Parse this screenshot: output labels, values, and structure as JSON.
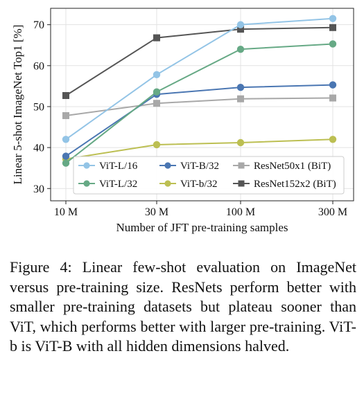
{
  "chart_data": {
    "type": "line",
    "x": [
      "10 M",
      "30 M",
      "100 M",
      "300 M"
    ],
    "xlabel": "Number of JFT pre-training samples",
    "ylabel": "Linear 5-shot ImageNet Top1 [%]",
    "ylim": [
      27,
      74
    ],
    "yticks": [
      30,
      40,
      50,
      60,
      70
    ],
    "grid": true,
    "legend_placement": "bottom-right",
    "series": [
      {
        "name": "ViT-L/16",
        "color": "#93c4e6",
        "marker": "circle",
        "values": [
          42.0,
          57.8,
          70.0,
          71.5
        ]
      },
      {
        "name": "ViT-L/32",
        "color": "#66a985",
        "marker": "circle",
        "values": [
          36.2,
          53.6,
          64.0,
          65.3
        ]
      },
      {
        "name": "ViT-B/32",
        "color": "#4a76b2",
        "marker": "circle",
        "values": [
          37.9,
          53.0,
          54.7,
          55.3
        ]
      },
      {
        "name": "ViT-b/32",
        "color": "#bcbf52",
        "marker": "circle",
        "values": [
          37.2,
          40.7,
          41.2,
          42.0
        ]
      },
      {
        "name": "ResNet50x1 (BiT)",
        "color": "#a8a8a8",
        "marker": "square",
        "values": [
          47.8,
          50.8,
          51.9,
          52.1
        ]
      },
      {
        "name": "ResNet152x2 (BiT)",
        "color": "#555555",
        "marker": "square",
        "values": [
          52.7,
          66.8,
          68.9,
          69.3
        ]
      }
    ]
  },
  "caption": "Figure 4: Linear few-shot evaluation on ImageNet versus pre-training size. ResNets perform better with smaller pre-training datasets but plateau sooner than ViT, which performs better with larger pre-training. ViT-b is ViT-B with all hidden dimensions halved."
}
